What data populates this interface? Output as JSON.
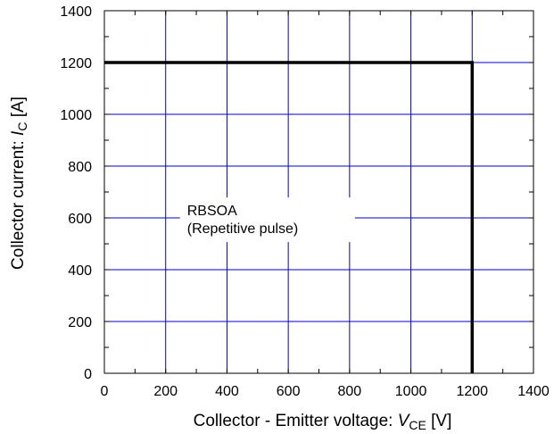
{
  "chart_data": {
    "type": "line",
    "title": "",
    "xlabel": {
      "prefix": "Collector - Emitter voltage: ",
      "symbol": "V",
      "subscript": "CE",
      "suffix": " [V]"
    },
    "ylabel": {
      "prefix": "Collector current: ",
      "symbol": "I",
      "subscript": "C",
      "suffix": " [A]"
    },
    "xlim": [
      0,
      1400
    ],
    "ylim": [
      0,
      1400
    ],
    "xticks": [
      0,
      200,
      400,
      600,
      800,
      1000,
      1200,
      1400
    ],
    "yticks": [
      0,
      200,
      400,
      600,
      800,
      1000,
      1200,
      1400
    ],
    "grid": true,
    "grid_color": "#0000cc",
    "series": [
      {
        "color": "#000000",
        "x": [
          0,
          1200,
          1200
        ],
        "y": [
          1200,
          1200,
          0
        ]
      }
    ],
    "annotation": {
      "lines": [
        "RBSOA",
        "(Repetitive pulse)"
      ],
      "x": 270,
      "y": 610
    }
  }
}
